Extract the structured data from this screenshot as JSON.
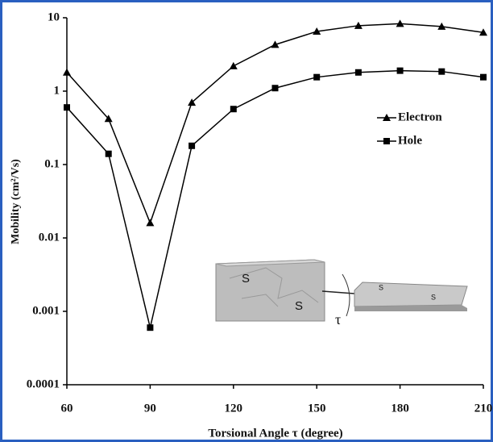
{
  "chart_data": {
    "type": "line",
    "x": [
      60,
      75,
      90,
      105,
      120,
      135,
      150,
      165,
      180,
      195,
      210
    ],
    "series": [
      {
        "name": "Electron",
        "color": "#000000",
        "marker": "triangle",
        "values": [
          1.8,
          0.42,
          0.016,
          0.7,
          2.2,
          4.3,
          6.5,
          7.8,
          8.3,
          7.6,
          6.3
        ]
      },
      {
        "name": "Hole",
        "color": "#000000",
        "marker": "square",
        "values": [
          0.6,
          0.14,
          0.0006,
          0.18,
          0.57,
          1.1,
          1.55,
          1.8,
          1.9,
          1.85,
          1.55
        ]
      }
    ],
    "xlim": [
      60,
      210
    ],
    "xticks": [
      60,
      90,
      120,
      150,
      180,
      210
    ],
    "ylim": [
      0.0001,
      10
    ],
    "yticks": [
      0.0001,
      0.001,
      0.01,
      0.1,
      1,
      10
    ],
    "ylog": true,
    "grid": false,
    "legend": "upper right",
    "xlabel": "Torsional Angle τ (degree)",
    "ylabel": "Mobility (cm²/Vs)",
    "annotations": [
      "S",
      "S",
      "S",
      "S",
      "τ"
    ]
  }
}
